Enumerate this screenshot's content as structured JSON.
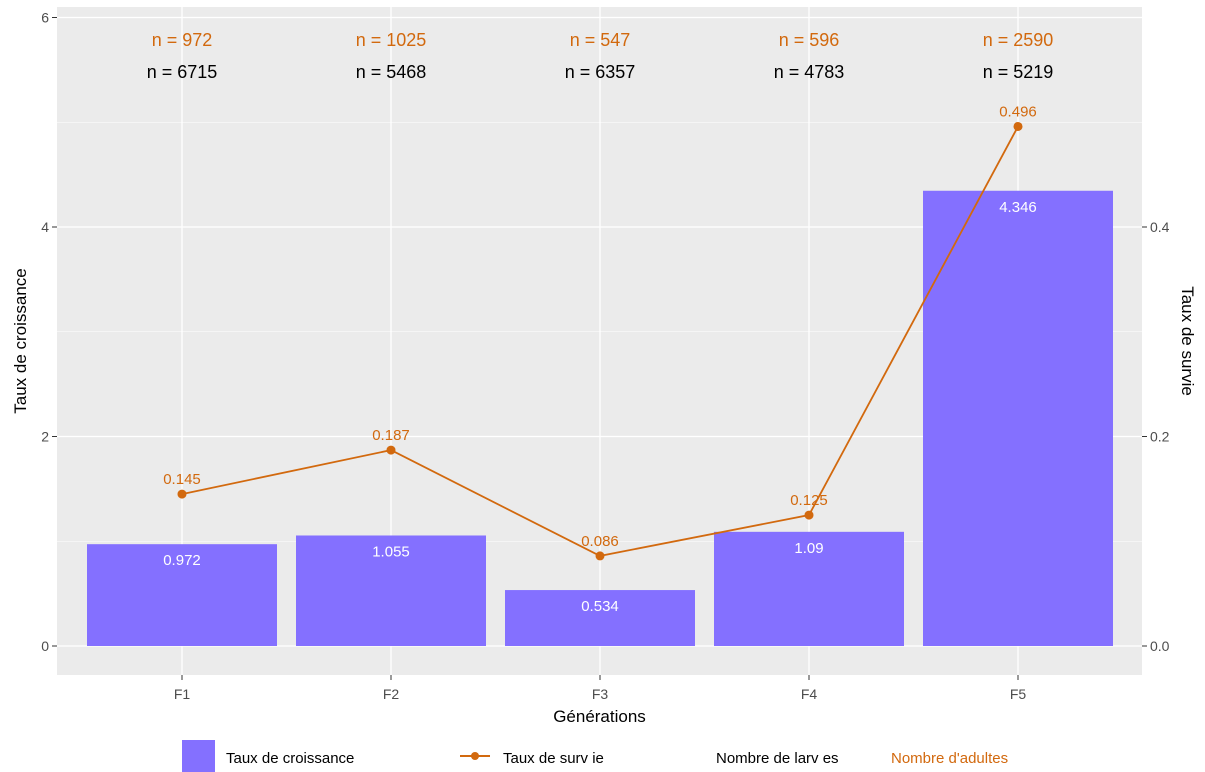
{
  "chart_data": {
    "type": "bar",
    "categories": [
      "F1",
      "F2",
      "F3",
      "F4",
      "F5"
    ],
    "xlabel": "Générations",
    "ylabel": "Taux de croissance",
    "y2label": "Taux de survie",
    "ylim": [
      0,
      6
    ],
    "y2lim": [
      0,
      0.6
    ],
    "yticks": [
      0,
      2,
      4,
      6
    ],
    "y2ticks": [
      "0.0",
      "0.2",
      "0.4"
    ],
    "grid": true,
    "legend_position": "bottom",
    "series": [
      {
        "name": "Taux de croissance",
        "kind": "bar",
        "axis": "left",
        "color": "#8470FF",
        "values": [
          0.972,
          1.055,
          0.534,
          1.09,
          4.346
        ],
        "labels": [
          "0.972",
          "1.055",
          "0.534",
          "1.09",
          "4.346"
        ]
      },
      {
        "name": "Taux de survie",
        "kind": "line",
        "axis": "right",
        "color": "#D2690E",
        "values": [
          0.145,
          0.187,
          0.086,
          0.125,
          0.496
        ],
        "labels": [
          "0.145",
          "0.187",
          "0.086",
          "0.125",
          "0.496"
        ]
      }
    ],
    "annotations": {
      "adultes": {
        "name": "Nombre d'adultes",
        "color": "#D2690E",
        "labels": [
          "n = 972",
          "n = 1025",
          "n = 547",
          "n = 596",
          "n = 2590"
        ]
      },
      "larves": {
        "name": "Nombre de larv es",
        "color": "#000000",
        "labels": [
          "n = 6715",
          "n = 5468",
          "n = 6357",
          "n = 4783",
          "n = 5219"
        ]
      }
    }
  },
  "colors": {
    "panel": "#EBEBEB",
    "grid": "#FFFFFF",
    "axis_text": "#4D4D4D"
  },
  "legend": {
    "bar_label": "Taux de croissance",
    "line_label": "Taux de surv ie",
    "larves_label": "Nombre de larv es",
    "adultes_label": "Nombre d'adultes"
  }
}
